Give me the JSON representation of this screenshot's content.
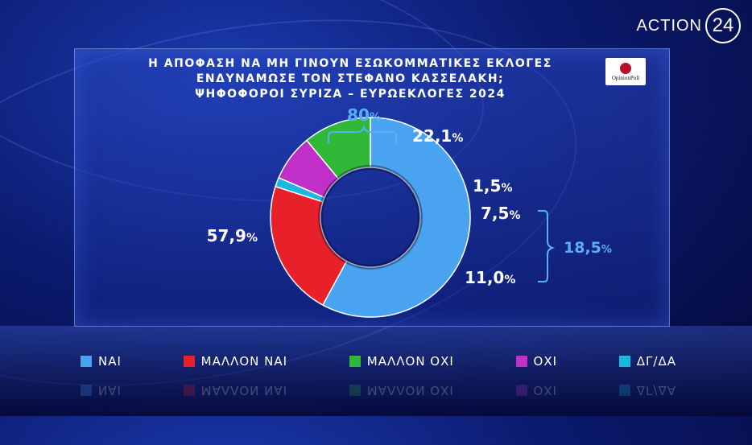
{
  "brand": {
    "name": "ACTION",
    "number": "24"
  },
  "logo": {
    "text": "OpinionPoll"
  },
  "title_lines": [
    "Η ΑΠΟΦΑΣΗ ΝΑ ΜΗ ΓΙΝΟΥΝ ΕΣΩΚΟΜΜΑΤΙΚΕΣ ΕΚΛΟΓΕΣ",
    "ΕΝΔΥΝΑΜΩΣΕ ΤΟΝ ΣΤΕΦΑΝΟ ΚΑΣΣΕΛΑΚΗ;",
    "ΨΗΦΟΦΟΡΟΙ ΣΥΡΙΖΑ – ΕΥΡΩΕΚΛΟΓΕΣ 2024"
  ],
  "chart_data": {
    "type": "pie",
    "title": "Η ΑΠΟΦΑΣΗ ΝΑ ΜΗ ΓΙΝΟΥΝ ΕΣΩΚΟΜΜΑΤΙΚΕΣ ΕΚΛΟΓΕΣ ΕΝΔΥΝΑΜΩΣΕ ΤΟΝ ΣΤΕΦΑΝΟ ΚΑΣΣΕΛΑΚΗ; ΨΗΦΟΦΟΡΟΙ ΣΥΡΙΖΑ – ΕΥΡΩΕΚΛΟΓΕΣ 2024",
    "donut": true,
    "slices": [
      {
        "label": "ΝΑΙ",
        "value": 57.9,
        "display": "57,9",
        "color": "#4aa3f0"
      },
      {
        "label": "ΜΑΛΛΟΝ ΝΑΙ",
        "value": 22.1,
        "display": "22,1",
        "color": "#e8202a"
      },
      {
        "label": "ΔΓ/ΔΑ",
        "value": 1.5,
        "display": "1,5",
        "color": "#18b8e0"
      },
      {
        "label": "ΟΧΙ",
        "value": 7.5,
        "display": "7,5",
        "color": "#c030c8"
      },
      {
        "label": "ΜΑΛΛΟΝ ΟΧΙ",
        "value": 11.0,
        "display": "11,0",
        "color": "#30b838"
      }
    ],
    "groups": [
      {
        "display": "80",
        "members": [
          "ΝΑΙ",
          "ΜΑΛΛΟΝ ΝΑΙ"
        ]
      },
      {
        "display": "18,5",
        "members": [
          "ΟΧΙ",
          "ΜΑΛΛΟΝ ΟΧΙ"
        ]
      }
    ],
    "percent_sign": "%",
    "legend_order": [
      "ΝΑΙ",
      "ΜΑΛΛΟΝ ΝΑΙ",
      "ΜΑΛΛΟΝ ΟΧΙ",
      "ΟΧΙ",
      "ΔΓ/ΔΑ"
    ]
  }
}
